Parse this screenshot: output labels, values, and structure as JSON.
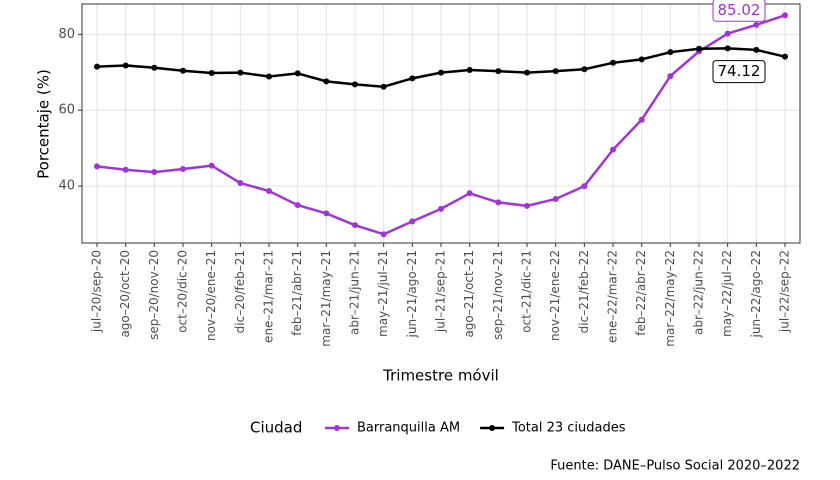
{
  "chart_data": {
    "type": "line",
    "x_label": "Trimestre móvil",
    "y_label": "Porcentaje (%)",
    "categories": [
      "jul–20/sep–20",
      "ago–20/oct–20",
      "sep–20/nov–20",
      "oct–20/dic–20",
      "nov–20/ene–21",
      "dic–20/feb–21",
      "ene–21/mar–21",
      "feb–21/abr–21",
      "mar–21/may–21",
      "abr–21/jun–21",
      "may–21/jul–21",
      "jun–21/ago–21",
      "jul–21/sep–21",
      "ago–21/oct–21",
      "sep–21/nov–21",
      "oct–21/dic–21",
      "nov–21/ene–22",
      "dic–21/feb–22",
      "ene–22/mar–22",
      "feb–22/abr–22",
      "mar–22/may–22",
      "abr–22/jun–22",
      "may–22/jul–22",
      "jun–22/ago–22",
      "jul–22/sep–22"
    ],
    "series": [
      {
        "name": "Barranquilla AM",
        "color": "#a035d6",
        "values": [
          45.2,
          44.3,
          43.7,
          44.5,
          45.4,
          40.8,
          38.7,
          35.0,
          32.8,
          29.7,
          27.3,
          30.7,
          34.0,
          38.1,
          35.7,
          34.8,
          36.6,
          40.0,
          49.6,
          57.5,
          69.0,
          75.5,
          80.2,
          82.5,
          85.02
        ]
      },
      {
        "name": "Total 23 ciudades",
        "color": "#000000",
        "values": [
          71.5,
          71.8,
          71.2,
          70.4,
          69.8,
          69.9,
          68.9,
          69.7,
          67.6,
          66.8,
          66.2,
          68.4,
          69.9,
          70.6,
          70.3,
          69.9,
          70.3,
          70.8,
          72.5,
          73.4,
          75.3,
          76.2,
          76.3,
          75.9,
          74.12
        ]
      }
    ],
    "ylim": [
      25,
      88
    ],
    "yticks": [
      40,
      60,
      80
    ],
    "grid": true,
    "legend_title": "Ciudad",
    "legend_position": "bottom",
    "source": "Fuente: DANE–Pulso Social 2020–2022"
  }
}
